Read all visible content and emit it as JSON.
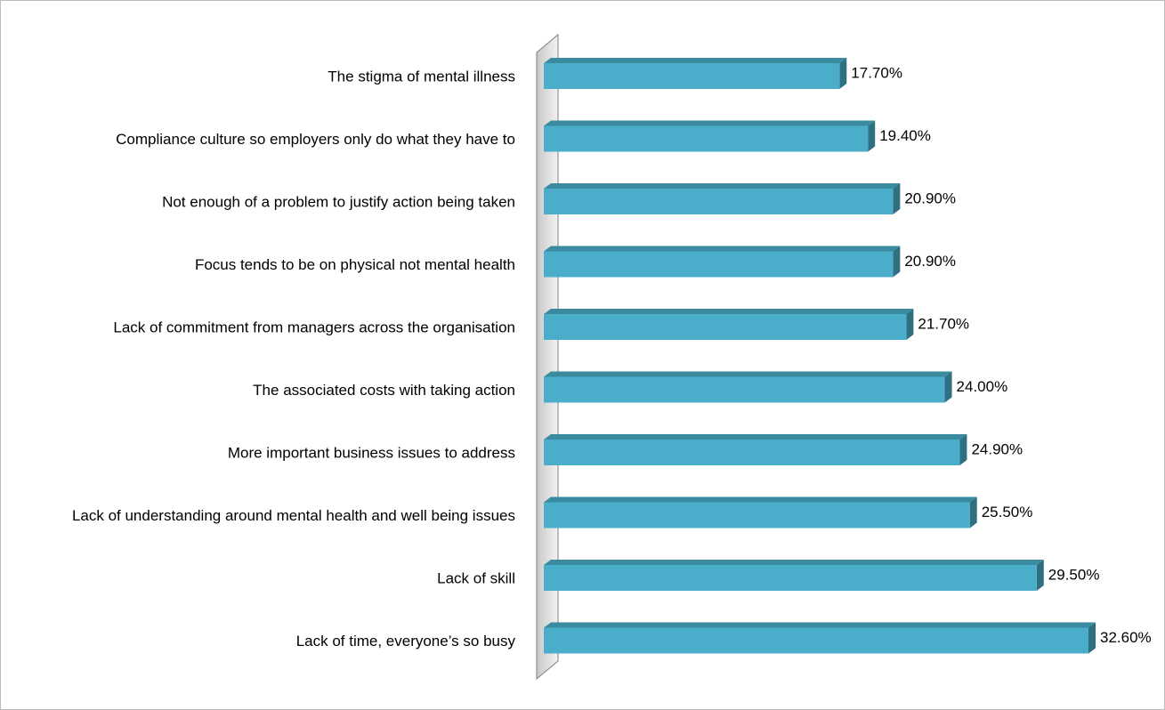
{
  "chart_data": {
    "type": "bar",
    "orientation": "horizontal",
    "style": "3d",
    "categories": [
      "The stigma of mental illness",
      "Compliance culture so employers only do what they have to",
      "Not enough of a problem to justify action being taken",
      "Focus tends to be on physical not mental health",
      "Lack of commitment from managers across the organisation",
      "The associated costs with taking action",
      "More important business issues to address",
      "Lack of understanding around mental health and well being issues",
      "Lack of skill",
      "Lack of time, everyone’s so busy"
    ],
    "values": [
      17.7,
      19.4,
      20.9,
      20.9,
      21.7,
      24.0,
      24.9,
      25.5,
      29.5,
      32.6
    ],
    "value_labels": [
      "17.70%",
      "19.40%",
      "20.90%",
      "20.90%",
      "21.70%",
      "24.00%",
      "24.90%",
      "25.50%",
      "29.50%",
      "32.60%"
    ],
    "xlim": [
      0,
      35
    ],
    "grid": false,
    "legend": "none",
    "colors": {
      "bar_front": "#4aadc9",
      "bar_top": "#3a8aa0",
      "bar_side": "#2e6f82",
      "wall": "#ffffff",
      "wall_edge": "#808080",
      "wall_shadow": "#d0d0d0"
    }
  }
}
